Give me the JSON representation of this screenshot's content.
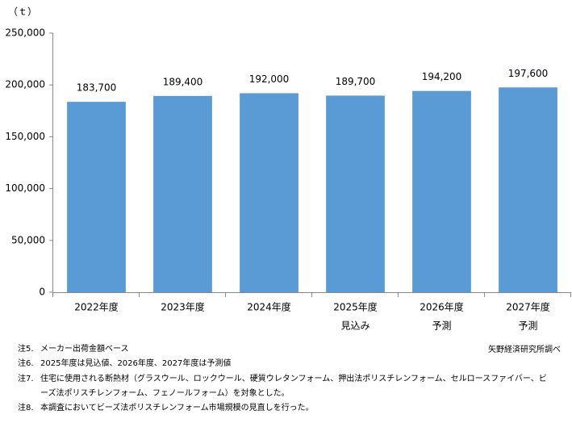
{
  "chart_data": {
    "type": "bar",
    "y_unit": "（ｔ）",
    "categories": [
      "2022年度",
      "2023年度",
      "2024年度",
      "2025年度",
      "2026年度",
      "2027年度"
    ],
    "category_notes": [
      null,
      null,
      null,
      "見込み",
      "予測",
      "予測"
    ],
    "values": [
      183700,
      189400,
      192000,
      189700,
      194200,
      197600
    ],
    "value_labels": [
      "183,700",
      "189,400",
      "192,000",
      "189,700",
      "194,200",
      "197,600"
    ],
    "color": "#5b9bd5",
    "ylim": [
      0,
      250000
    ],
    "yticks": [
      0,
      {
        "value": 50000,
        "label": "50,000"
      },
      {
        "value": 100000,
        "label": "100,000"
      },
      {
        "value": 150000,
        "label": "150,000"
      },
      {
        "value": 200000,
        "label": "200,000"
      },
      {
        "value": 250000,
        "label": "250,000"
      }
    ],
    "grid": false
  },
  "notes": [
    {
      "marker": "注5.",
      "text": "メーカー出荷金額ベース"
    },
    {
      "marker": "注6.",
      "text": "2025年度は見込値、2026年度、2027年度は予測値"
    },
    {
      "marker": "注7.",
      "text": "住宅に使用される断熱材（グラスウール、ロックウール、硬質ウレタンフォーム、押出法ポリスチレンフォーム、セルロースファイバー、ビーズ法ポリスチレンフォーム、フェノールフォーム）を対象とした。"
    },
    {
      "marker": "注8.",
      "text": "本調査においてビーズ法ポリスチレンフォーム市場規模の見直しを行った。"
    }
  ],
  "source": "矢野経済研究所調べ"
}
